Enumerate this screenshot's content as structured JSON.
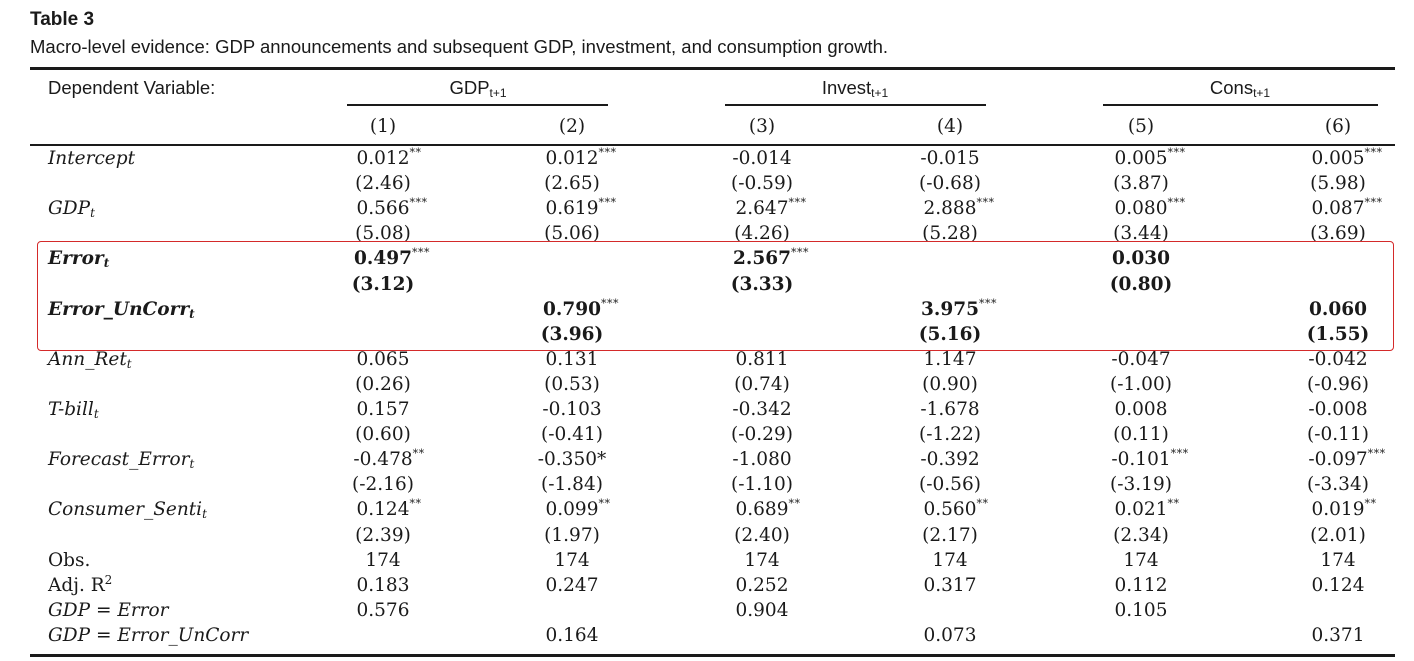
{
  "table_label": "Table 3",
  "caption": "Macro-level evidence: GDP announcements and subsequent GDP, investment, and consumption growth.",
  "header": {
    "dep_var_label": "Dependent Variable:",
    "groups": [
      {
        "base": "GDP",
        "sub": "t+1"
      },
      {
        "base": "Invest",
        "sub": "t+1"
      },
      {
        "base": "Cons",
        "sub": "t+1"
      }
    ],
    "columns": [
      "(1)",
      "(2)",
      "(3)",
      "(4)",
      "(5)",
      "(6)"
    ]
  },
  "rows": [
    {
      "base": "Intercept",
      "sub": "",
      "italic": true,
      "bold": false,
      "cells": [
        {
          "v": "0.012",
          "st": "**"
        },
        {
          "v": "0.012",
          "st": "***"
        },
        {
          "v": "-0.014",
          "st": ""
        },
        {
          "v": "-0.015",
          "st": ""
        },
        {
          "v": "0.005",
          "st": "***"
        },
        {
          "v": "0.005",
          "st": "***"
        }
      ]
    },
    {
      "base": "",
      "sub": "",
      "italic": false,
      "bold": false,
      "cells": [
        {
          "v": "(2.46)",
          "st": ""
        },
        {
          "v": "(2.65)",
          "st": ""
        },
        {
          "v": "(-0.59)",
          "st": ""
        },
        {
          "v": "(-0.68)",
          "st": ""
        },
        {
          "v": "(3.87)",
          "st": ""
        },
        {
          "v": "(5.98)",
          "st": ""
        }
      ]
    },
    {
      "base": "GDP",
      "sub": "t",
      "italic": true,
      "bold": false,
      "cells": [
        {
          "v": "0.566",
          "st": "***"
        },
        {
          "v": "0.619",
          "st": "***"
        },
        {
          "v": "2.647",
          "st": "***"
        },
        {
          "v": "2.888",
          "st": "***"
        },
        {
          "v": "0.080",
          "st": "***"
        },
        {
          "v": "0.087",
          "st": "***"
        }
      ]
    },
    {
      "base": "",
      "sub": "",
      "italic": false,
      "bold": false,
      "cells": [
        {
          "v": "(5.08)",
          "st": ""
        },
        {
          "v": "(5.06)",
          "st": ""
        },
        {
          "v": "(4.26)",
          "st": ""
        },
        {
          "v": "(5.28)",
          "st": ""
        },
        {
          "v": "(3.44)",
          "st": ""
        },
        {
          "v": "(3.69)",
          "st": ""
        }
      ]
    },
    {
      "base": "Error",
      "sub": "t",
      "italic": true,
      "bold": true,
      "cells": [
        {
          "v": "0.497",
          "st": "***"
        },
        {
          "v": "",
          "st": ""
        },
        {
          "v": "2.567",
          "st": "***"
        },
        {
          "v": "",
          "st": ""
        },
        {
          "v": "0.030",
          "st": ""
        },
        {
          "v": "",
          "st": ""
        }
      ]
    },
    {
      "base": "",
      "sub": "",
      "italic": false,
      "bold": true,
      "cells": [
        {
          "v": "(3.12)",
          "st": ""
        },
        {
          "v": "",
          "st": ""
        },
        {
          "v": "(3.33)",
          "st": ""
        },
        {
          "v": "",
          "st": ""
        },
        {
          "v": "(0.80)",
          "st": ""
        },
        {
          "v": "",
          "st": ""
        }
      ]
    },
    {
      "base": "Error_UnCorr",
      "sub": "t",
      "italic": true,
      "bold": true,
      "cells": [
        {
          "v": "",
          "st": ""
        },
        {
          "v": "0.790",
          "st": "***"
        },
        {
          "v": "",
          "st": ""
        },
        {
          "v": "3.975",
          "st": "***"
        },
        {
          "v": "",
          "st": ""
        },
        {
          "v": "0.060",
          "st": ""
        }
      ]
    },
    {
      "base": "",
      "sub": "",
      "italic": false,
      "bold": true,
      "cells": [
        {
          "v": "",
          "st": ""
        },
        {
          "v": "(3.96)",
          "st": ""
        },
        {
          "v": "",
          "st": ""
        },
        {
          "v": "(5.16)",
          "st": ""
        },
        {
          "v": "",
          "st": ""
        },
        {
          "v": "(1.55)",
          "st": ""
        }
      ]
    },
    {
      "base": "Ann_Ret",
      "sub": "t",
      "italic": true,
      "bold": false,
      "cells": [
        {
          "v": "0.065",
          "st": ""
        },
        {
          "v": "0.131",
          "st": ""
        },
        {
          "v": "0.811",
          "st": ""
        },
        {
          "v": "1.147",
          "st": ""
        },
        {
          "v": "-0.047",
          "st": ""
        },
        {
          "v": "-0.042",
          "st": ""
        }
      ]
    },
    {
      "base": "",
      "sub": "",
      "italic": false,
      "bold": false,
      "cells": [
        {
          "v": "(0.26)",
          "st": ""
        },
        {
          "v": "(0.53)",
          "st": ""
        },
        {
          "v": "(0.74)",
          "st": ""
        },
        {
          "v": "(0.90)",
          "st": ""
        },
        {
          "v": "(-1.00)",
          "st": ""
        },
        {
          "v": "(-0.96)",
          "st": ""
        }
      ]
    },
    {
      "base": "T-bill",
      "sub": "t",
      "italic": true,
      "bold": false,
      "cells": [
        {
          "v": "0.157",
          "st": ""
        },
        {
          "v": "-0.103",
          "st": ""
        },
        {
          "v": "-0.342",
          "st": ""
        },
        {
          "v": "-1.678",
          "st": ""
        },
        {
          "v": "0.008",
          "st": ""
        },
        {
          "v": "-0.008",
          "st": ""
        }
      ]
    },
    {
      "base": "",
      "sub": "",
      "italic": false,
      "bold": false,
      "cells": [
        {
          "v": "(0.60)",
          "st": ""
        },
        {
          "v": "(-0.41)",
          "st": ""
        },
        {
          "v": "(-0.29)",
          "st": ""
        },
        {
          "v": "(-1.22)",
          "st": ""
        },
        {
          "v": "(0.11)",
          "st": ""
        },
        {
          "v": "(-0.11)",
          "st": ""
        }
      ]
    },
    {
      "base": "Forecast_Error",
      "sub": "t",
      "italic": true,
      "bold": false,
      "cells": [
        {
          "v": "-0.478",
          "st": "**"
        },
        {
          "v": "-0.350*",
          "st": ""
        },
        {
          "v": "-1.080",
          "st": ""
        },
        {
          "v": "-0.392",
          "st": ""
        },
        {
          "v": "-0.101",
          "st": "***"
        },
        {
          "v": "-0.097",
          "st": "***"
        }
      ]
    },
    {
      "base": "",
      "sub": "",
      "italic": false,
      "bold": false,
      "cells": [
        {
          "v": "(-2.16)",
          "st": ""
        },
        {
          "v": "(-1.84)",
          "st": ""
        },
        {
          "v": "(-1.10)",
          "st": ""
        },
        {
          "v": "(-0.56)",
          "st": ""
        },
        {
          "v": "(-3.19)",
          "st": ""
        },
        {
          "v": "(-3.34)",
          "st": ""
        }
      ]
    },
    {
      "base": "Consumer_Senti",
      "sub": "t",
      "italic": true,
      "bold": false,
      "cells": [
        {
          "v": "0.124",
          "st": "**"
        },
        {
          "v": "0.099",
          "st": "**"
        },
        {
          "v": "0.689",
          "st": "**"
        },
        {
          "v": "0.560",
          "st": "**"
        },
        {
          "v": "0.021",
          "st": "**"
        },
        {
          "v": "0.019",
          "st": "**"
        }
      ]
    },
    {
      "base": "",
      "sub": "",
      "italic": false,
      "bold": false,
      "cells": [
        {
          "v": "(2.39)",
          "st": ""
        },
        {
          "v": "(1.97)",
          "st": ""
        },
        {
          "v": "(2.40)",
          "st": ""
        },
        {
          "v": "(2.17)",
          "st": ""
        },
        {
          "v": "(2.34)",
          "st": ""
        },
        {
          "v": "(2.01)",
          "st": ""
        }
      ]
    },
    {
      "base": "Obs.",
      "sub": "",
      "italic": false,
      "bold": false,
      "cells": [
        {
          "v": "174",
          "st": ""
        },
        {
          "v": "174",
          "st": ""
        },
        {
          "v": "174",
          "st": ""
        },
        {
          "v": "174",
          "st": ""
        },
        {
          "v": "174",
          "st": ""
        },
        {
          "v": "174",
          "st": ""
        }
      ]
    },
    {
      "base": "Adj. R",
      "sup": "2",
      "sub": "",
      "italic": false,
      "bold": false,
      "cells": [
        {
          "v": "0.183",
          "st": ""
        },
        {
          "v": "0.247",
          "st": ""
        },
        {
          "v": "0.252",
          "st": ""
        },
        {
          "v": "0.317",
          "st": ""
        },
        {
          "v": "0.112",
          "st": ""
        },
        {
          "v": "0.124",
          "st": ""
        }
      ]
    },
    {
      "base": "GDP = Error",
      "sub": "",
      "italic": true,
      "bold": false,
      "cells": [
        {
          "v": "0.576",
          "st": ""
        },
        {
          "v": "",
          "st": ""
        },
        {
          "v": "0.904",
          "st": ""
        },
        {
          "v": "",
          "st": ""
        },
        {
          "v": "0.105",
          "st": ""
        },
        {
          "v": "",
          "st": ""
        }
      ]
    },
    {
      "base": "GDP = Error_UnCorr",
      "sub": "",
      "italic": true,
      "bold": false,
      "cells": [
        {
          "v": "",
          "st": ""
        },
        {
          "v": "0.164",
          "st": ""
        },
        {
          "v": "",
          "st": ""
        },
        {
          "v": "0.073",
          "st": ""
        },
        {
          "v": "",
          "st": ""
        },
        {
          "v": "0.371",
          "st": ""
        }
      ]
    }
  ],
  "highlight_color": "#d42a2a"
}
